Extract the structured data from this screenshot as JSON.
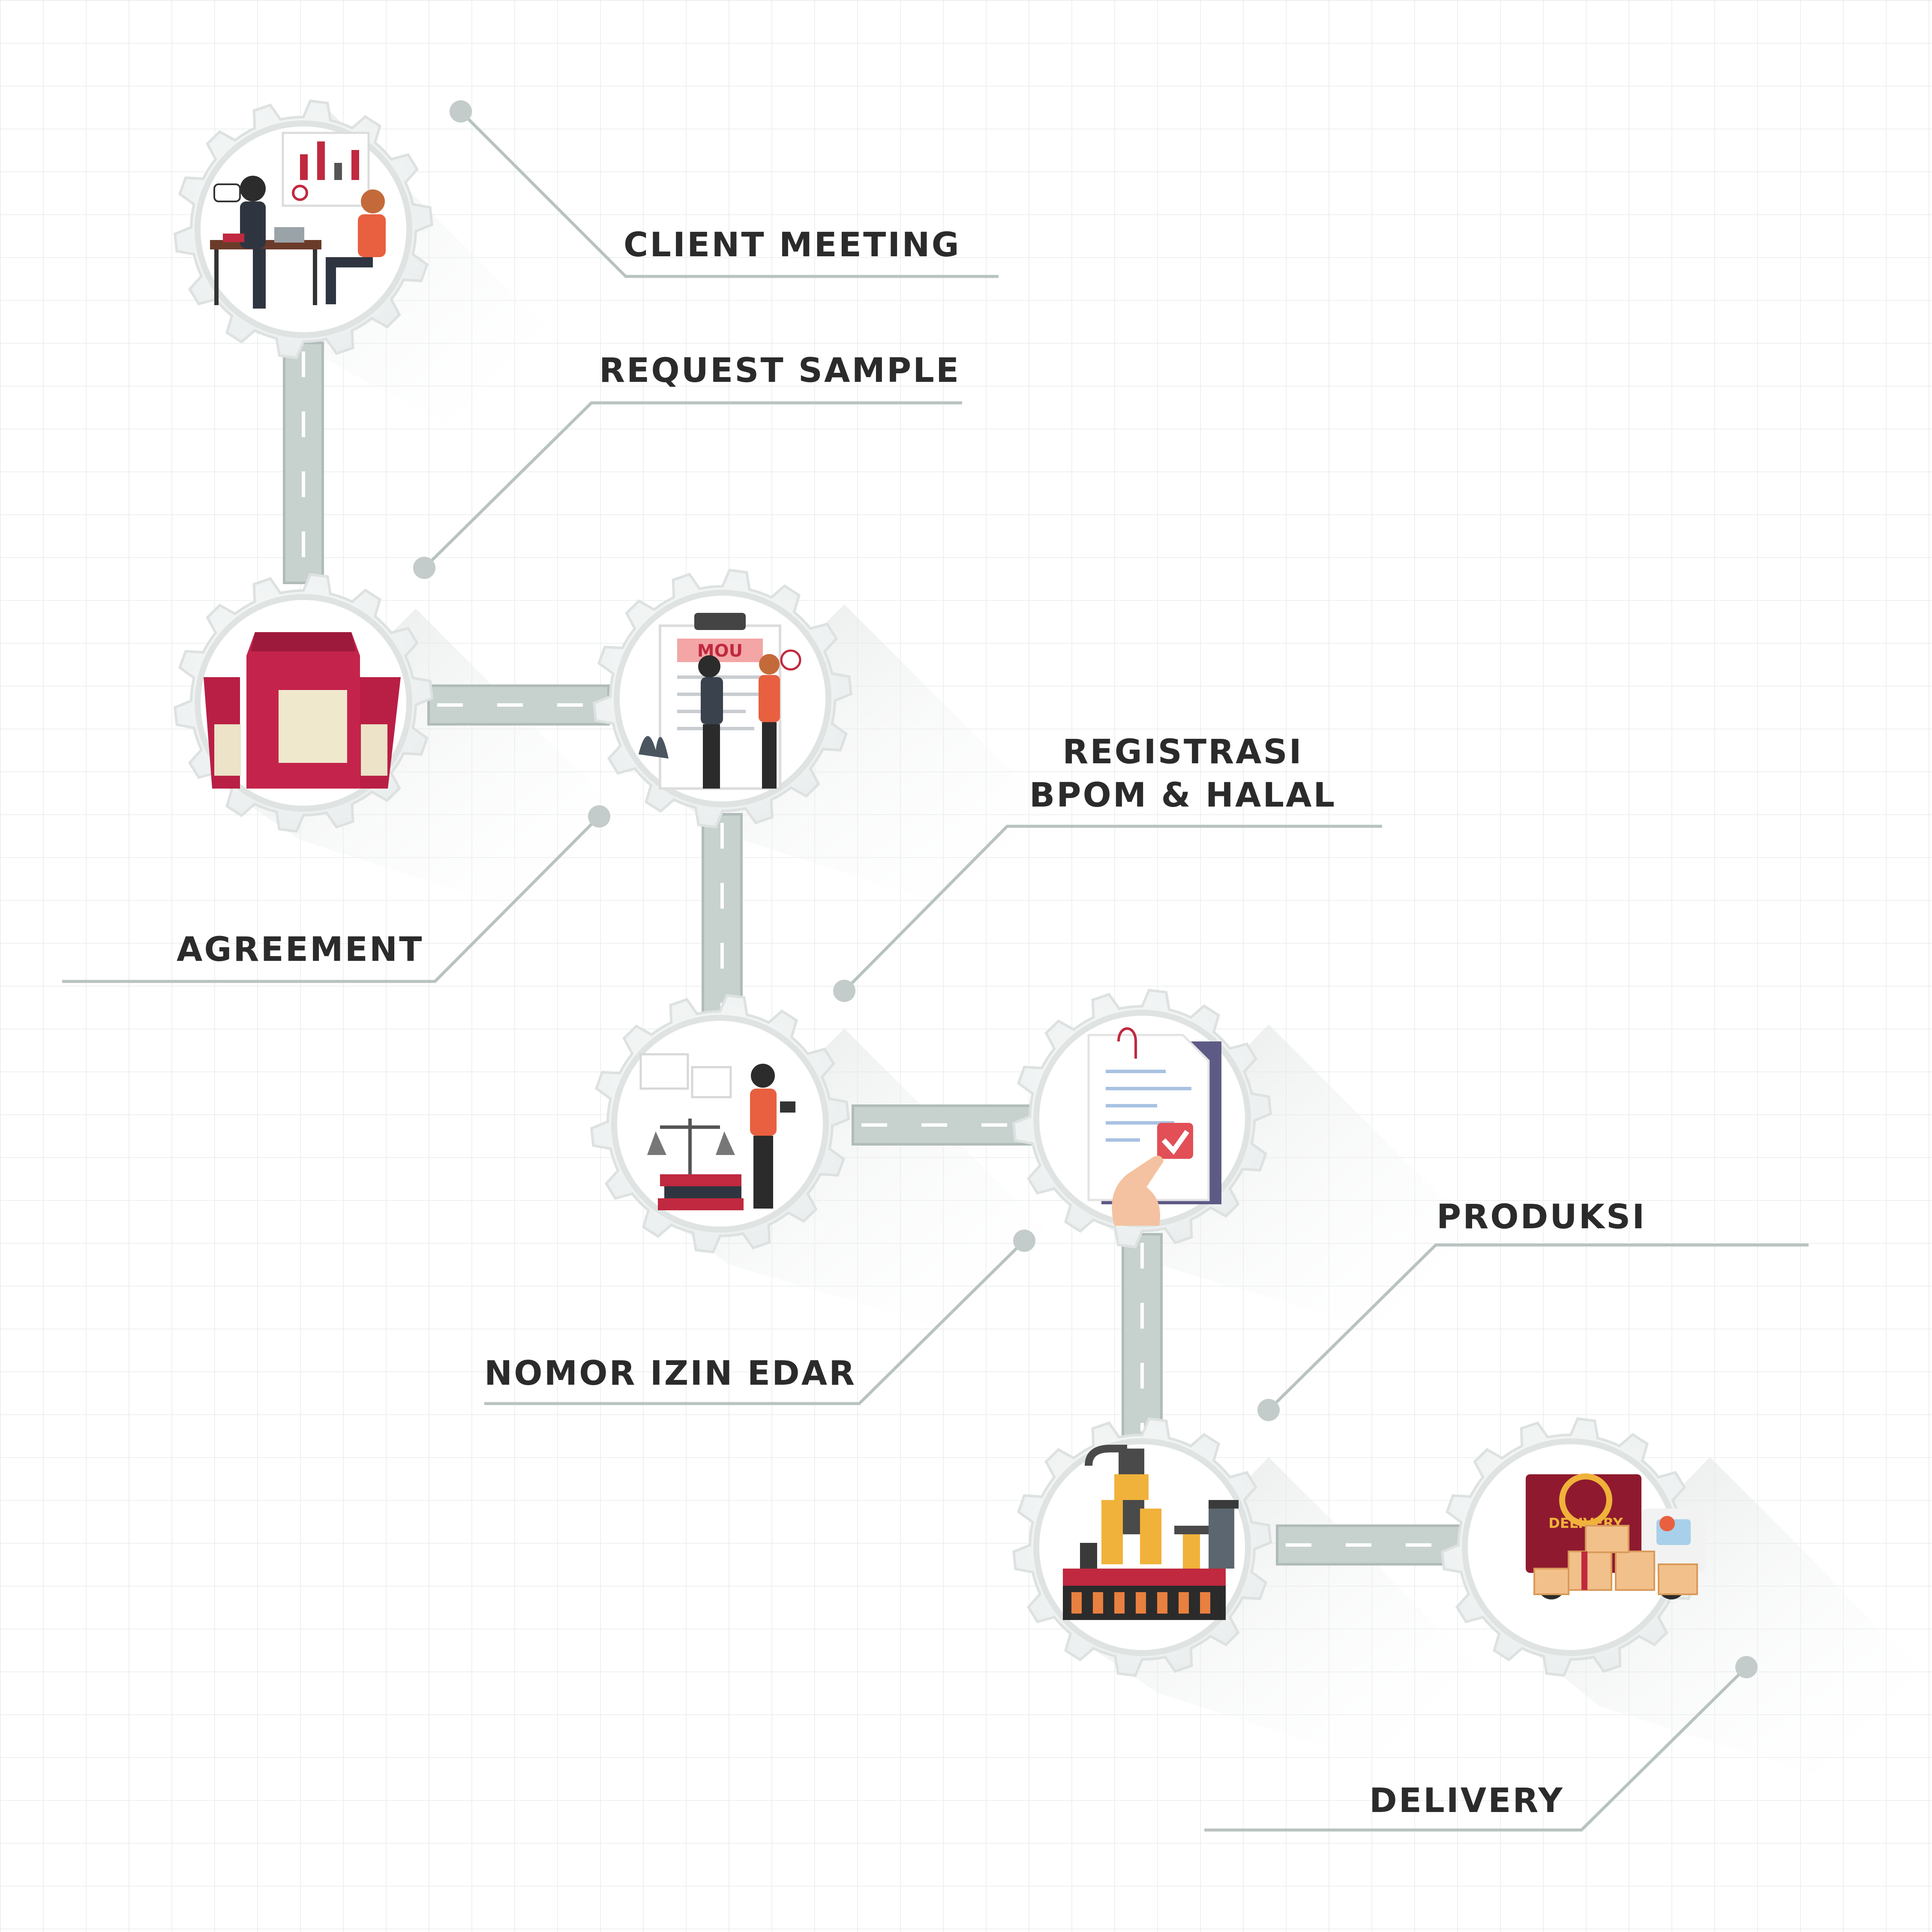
{
  "steps": [
    {
      "label": "CLIENT MEETING",
      "icon": "client-meeting-illustration"
    },
    {
      "label": "REQUEST SAMPLE",
      "icon": "sample-bags-illustration"
    },
    {
      "label": "AGREEMENT",
      "icon": "mou-agreement-illustration"
    },
    {
      "label_line1": "REGISTRASI",
      "label_line2": "BPOM & HALAL",
      "icon": "legal-registration-illustration"
    },
    {
      "label": "NOMOR IZIN EDAR",
      "icon": "approved-document-illustration"
    },
    {
      "label": "PRODUKSI",
      "icon": "production-robot-illustration"
    },
    {
      "label": "DELIVERY",
      "icon": "delivery-truck-illustration",
      "truck_text": "DELIVERY"
    }
  ],
  "mou_text": "MOU",
  "colors": {
    "gear": "#eef1f0",
    "gear_edge": "#dde2e1",
    "connector": "#c7d2cf",
    "leader": "#b8c3c1",
    "text": "#2b2b2b",
    "accent_red": "#c0293f",
    "accent_orange": "#e8803f",
    "accent_yellow": "#f0b23a"
  }
}
